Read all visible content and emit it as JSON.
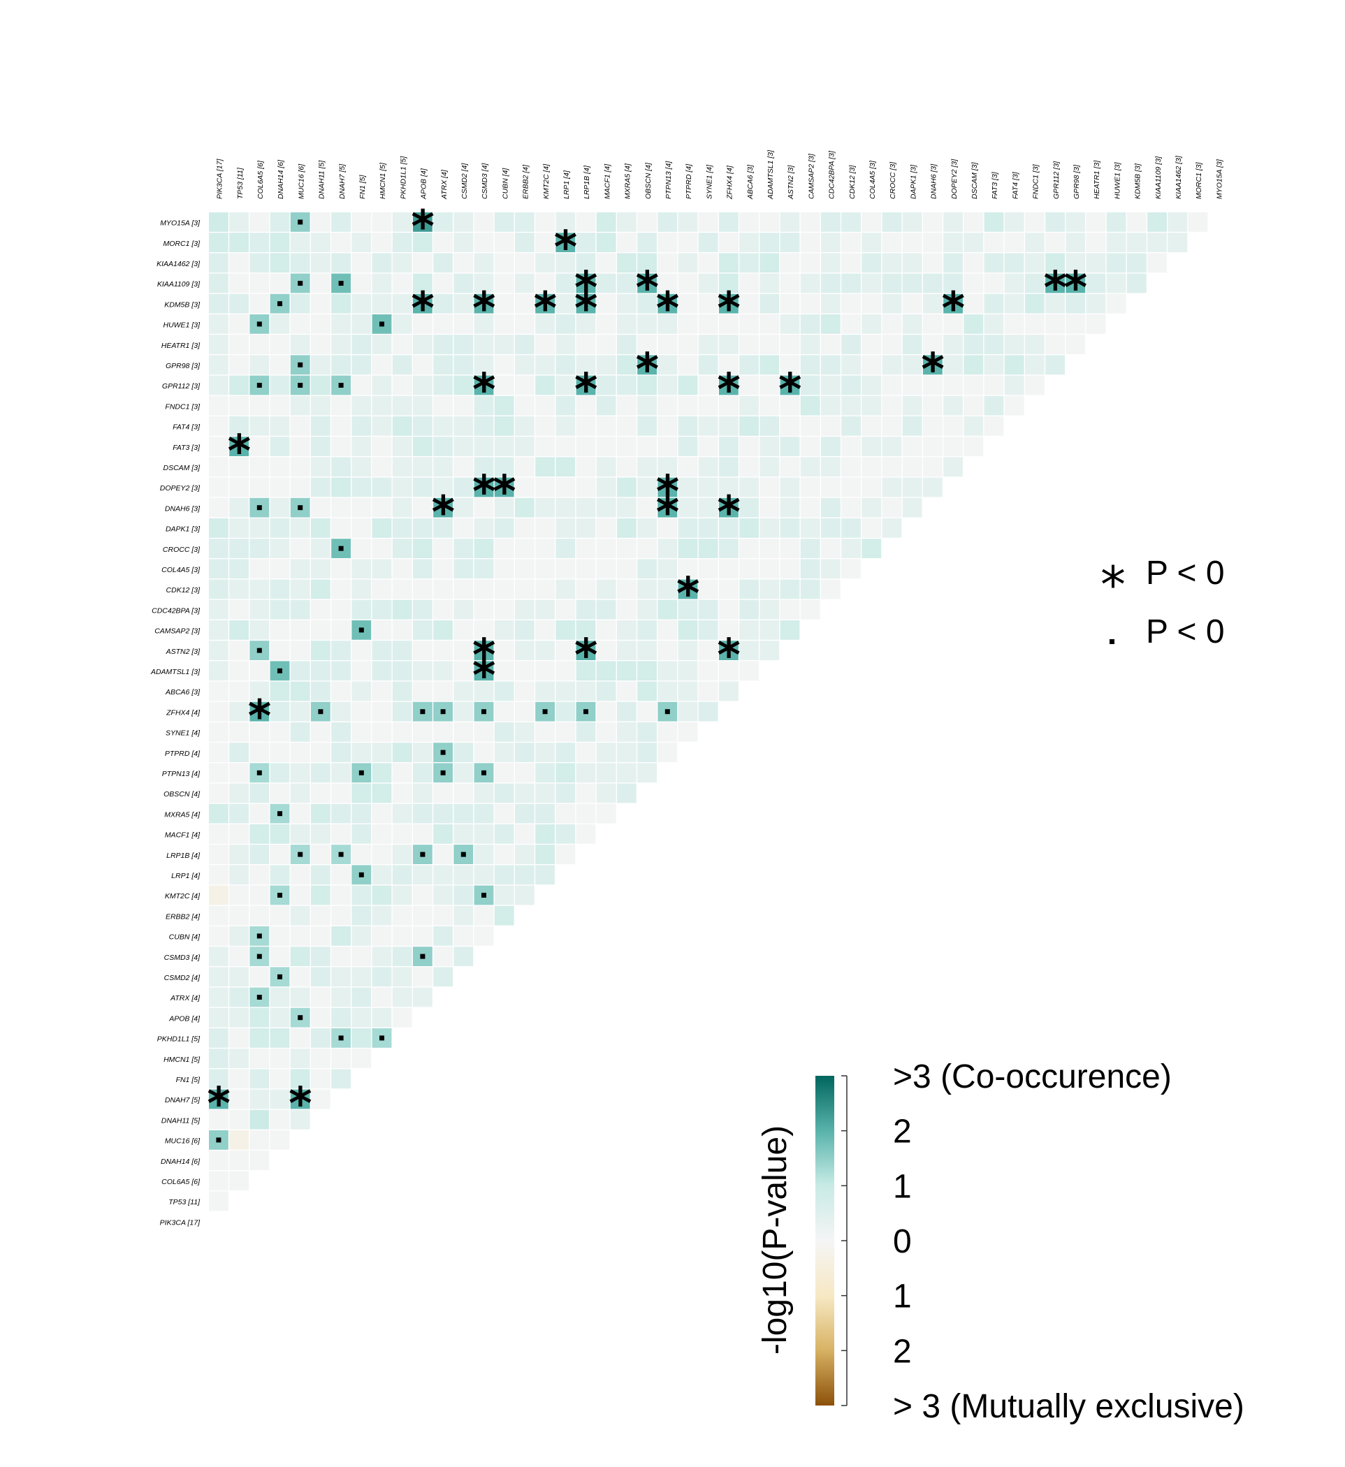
{
  "chart_data": {
    "type": "heatmap",
    "layout": "lower-left triangle (somatic interactions)",
    "genes": [
      "PIK3CA [17]",
      "TP53 [11]",
      "COL6A5 [6]",
      "DNAH14 [6]",
      "MUC16 [6]",
      "DNAH11 [5]",
      "DNAH7 [5]",
      "FN1 [5]",
      "HMCN1 [5]",
      "PKHD1L1 [5]",
      "APOB [4]",
      "ATRX [4]",
      "CSMD2 [4]",
      "CSMD3 [4]",
      "CUBN [4]",
      "ERBB2 [4]",
      "KMT2C [4]",
      "LRP1 [4]",
      "LRP1B [4]",
      "MACF1 [4]",
      "MXRA5 [4]",
      "OBSCN [4]",
      "PTPN13 [4]",
      "PTPRD [4]",
      "SYNE1 [4]",
      "ZFHX4 [4]",
      "ABCA6 [3]",
      "ADAMTSL1 [3]",
      "ASTN2 [3]",
      "CAMSAP2 [3]",
      "CDC42BPA [3]",
      "CDK12 [3]",
      "COL4A5 [3]",
      "CROCC [3]",
      "DAPK1 [3]",
      "DNAH6 [3]",
      "DOPEY2 [3]",
      "DSCAM [3]",
      "FAT3 [3]",
      "FAT4 [3]",
      "FNDC1 [3]",
      "GPR112 [3]",
      "GPR98 [3]",
      "HEATR1 [3]",
      "HUWE1 [3]",
      "KDM5B [3]",
      "KIAA1109 [3]",
      "KIAA1462 [3]",
      "MORC1 [3]",
      "MYO15A [3]"
    ],
    "value_meaning": "-log10(P-value); positive = co-occurence, negative = mutually exclusive",
    "cells": [
      {
        "row": "MYO15A [3]",
        "col": "PIK3CA [17]",
        "value": 0.8
      },
      {
        "row": "MYO15A [3]",
        "col": "MUC16 [6]",
        "value": 1.5,
        "mark": "dot"
      },
      {
        "row": "MYO15A [3]",
        "col": "APOB [4]",
        "value": 2.3,
        "mark": "star"
      },
      {
        "row": "MYO15A [3]",
        "col": "ATRX [4]",
        "value": 0.5
      },
      {
        "row": "MYO15A [3]",
        "col": "ERBB2 [4]",
        "value": 0.5
      },
      {
        "row": "MYO15A [3]",
        "col": "CDK12 [3]",
        "value": 0.5
      },
      {
        "row": "MORC1 [3]",
        "col": "LRP1 [4]",
        "value": 2.0,
        "mark": "star"
      },
      {
        "row": "KIAA1109 [3]",
        "col": "MUC16 [6]",
        "value": 1.5,
        "mark": "dot"
      },
      {
        "row": "KIAA1109 [3]",
        "col": "DNAH7 [5]",
        "value": 1.8,
        "mark": "dot"
      },
      {
        "row": "KIAA1109 [3]",
        "col": "LRP1B [4]",
        "value": 2.0,
        "mark": "star"
      },
      {
        "row": "KIAA1109 [3]",
        "col": "OBSCN [4]",
        "value": 2.0,
        "mark": "star"
      },
      {
        "row": "KIAA1109 [3]",
        "col": "GPR112 [3]",
        "value": 2.0,
        "mark": "star"
      },
      {
        "row": "KIAA1109 [3]",
        "col": "GPR98 [3]",
        "value": 2.0,
        "mark": "star"
      },
      {
        "row": "KDM5B [3]",
        "col": "DNAH14 [6]",
        "value": 1.5,
        "mark": "dot"
      },
      {
        "row": "KDM5B [3]",
        "col": "APOB [4]",
        "value": 2.0,
        "mark": "star"
      },
      {
        "row": "KDM5B [3]",
        "col": "CSMD3 [4]",
        "value": 2.0,
        "mark": "star"
      },
      {
        "row": "KDM5B [3]",
        "col": "KMT2C [4]",
        "value": 2.0,
        "mark": "star"
      },
      {
        "row": "KDM5B [3]",
        "col": "LRP1B [4]",
        "value": 2.0,
        "mark": "star"
      },
      {
        "row": "KDM5B [3]",
        "col": "PTPN13 [4]",
        "value": 2.0,
        "mark": "star"
      },
      {
        "row": "KDM5B [3]",
        "col": "ZFHX4 [4]",
        "value": 2.0,
        "mark": "star"
      },
      {
        "row": "KDM5B [3]",
        "col": "DOPEY2 [3]",
        "value": 2.0,
        "mark": "star"
      },
      {
        "row": "HUWE1 [3]",
        "col": "COL6A5 [6]",
        "value": 1.5,
        "mark": "dot"
      },
      {
        "row": "HUWE1 [3]",
        "col": "HMCN1 [5]",
        "value": 1.8,
        "mark": "dot"
      },
      {
        "row": "GPR98 [3]",
        "col": "MUC16 [6]",
        "value": 1.5,
        "mark": "dot"
      },
      {
        "row": "GPR98 [3]",
        "col": "OBSCN [4]",
        "value": 2.0,
        "mark": "star"
      },
      {
        "row": "GPR98 [3]",
        "col": "DNAH6 [3]",
        "value": 2.0,
        "mark": "star"
      },
      {
        "row": "GPR112 [3]",
        "col": "COL6A5 [6]",
        "value": 1.5,
        "mark": "dot"
      },
      {
        "row": "GPR112 [3]",
        "col": "MUC16 [6]",
        "value": 1.5,
        "mark": "dot"
      },
      {
        "row": "GPR112 [3]",
        "col": "DNAH7 [5]",
        "value": 1.5,
        "mark": "dot"
      },
      {
        "row": "GPR112 [3]",
        "col": "CSMD3 [4]",
        "value": 2.0,
        "mark": "star"
      },
      {
        "row": "GPR112 [3]",
        "col": "LRP1B [4]",
        "value": 2.0,
        "mark": "star"
      },
      {
        "row": "GPR112 [3]",
        "col": "ZFHX4 [4]",
        "value": 2.0,
        "mark": "star"
      },
      {
        "row": "GPR112 [3]",
        "col": "ASTN2 [3]",
        "value": 2.0,
        "mark": "star"
      },
      {
        "row": "FAT3 [3]",
        "col": "TP53 [11]",
        "value": 2.0,
        "mark": "star"
      },
      {
        "row": "DOPEY2 [3]",
        "col": "CSMD3 [4]",
        "value": 2.0,
        "mark": "star"
      },
      {
        "row": "DOPEY2 [3]",
        "col": "CUBN [4]",
        "value": 2.0,
        "mark": "star"
      },
      {
        "row": "DOPEY2 [3]",
        "col": "PTPN13 [4]",
        "value": 2.0,
        "mark": "star"
      },
      {
        "row": "DNAH6 [3]",
        "col": "COL6A5 [6]",
        "value": 1.5,
        "mark": "dot"
      },
      {
        "row": "DNAH6 [3]",
        "col": "MUC16 [6]",
        "value": 1.5,
        "mark": "dot"
      },
      {
        "row": "DNAH6 [3]",
        "col": "ATRX [4]",
        "value": 2.0,
        "mark": "star"
      },
      {
        "row": "DNAH6 [3]",
        "col": "PTPN13 [4]",
        "value": 2.0,
        "mark": "star"
      },
      {
        "row": "DNAH6 [3]",
        "col": "ZFHX4 [4]",
        "value": 2.0,
        "mark": "star"
      },
      {
        "row": "CROCC [3]",
        "col": "DNAH7 [5]",
        "value": 1.8,
        "mark": "dot"
      },
      {
        "row": "CDK12 [3]",
        "col": "PTPRD [4]",
        "value": 2.0,
        "mark": "star"
      },
      {
        "row": "CAMSAP2 [3]",
        "col": "FN1 [5]",
        "value": 1.8,
        "mark": "dot"
      },
      {
        "row": "ASTN2 [3]",
        "col": "COL6A5 [6]",
        "value": 1.5,
        "mark": "dot"
      },
      {
        "row": "ASTN2 [3]",
        "col": "CSMD3 [4]",
        "value": 2.0,
        "mark": "star"
      },
      {
        "row": "ASTN2 [3]",
        "col": "LRP1B [4]",
        "value": 2.0,
        "mark": "star"
      },
      {
        "row": "ASTN2 [3]",
        "col": "ZFHX4 [4]",
        "value": 2.0,
        "mark": "star"
      },
      {
        "row": "ADAMTSL1 [3]",
        "col": "DNAH14 [6]",
        "value": 1.8,
        "mark": "dot"
      },
      {
        "row": "ADAMTSL1 [3]",
        "col": "CSMD3 [4]",
        "value": 2.0,
        "mark": "star"
      },
      {
        "row": "ZFHX4 [4]",
        "col": "COL6A5 [6]",
        "value": 2.0,
        "mark": "star"
      },
      {
        "row": "ZFHX4 [4]",
        "col": "DNAH11 [5]",
        "value": 1.5,
        "mark": "dot"
      },
      {
        "row": "ZFHX4 [4]",
        "col": "APOB [4]",
        "value": 1.5,
        "mark": "dot"
      },
      {
        "row": "ZFHX4 [4]",
        "col": "ATRX [4]",
        "value": 1.5,
        "mark": "dot"
      },
      {
        "row": "ZFHX4 [4]",
        "col": "CSMD3 [4]",
        "value": 1.5,
        "mark": "dot"
      },
      {
        "row": "ZFHX4 [4]",
        "col": "KMT2C [4]",
        "value": 1.5,
        "mark": "dot"
      },
      {
        "row": "ZFHX4 [4]",
        "col": "LRP1B [4]",
        "value": 1.5,
        "mark": "dot"
      },
      {
        "row": "ZFHX4 [4]",
        "col": "PTPN13 [4]",
        "value": 1.5,
        "mark": "dot"
      },
      {
        "row": "PTPRD [4]",
        "col": "ATRX [4]",
        "value": 1.5,
        "mark": "dot"
      },
      {
        "row": "PTPN13 [4]",
        "col": "COL6A5 [6]",
        "value": 1.3,
        "mark": "dot"
      },
      {
        "row": "PTPN13 [4]",
        "col": "FN1 [5]",
        "value": 1.5,
        "mark": "dot"
      },
      {
        "row": "PTPN13 [4]",
        "col": "ATRX [4]",
        "value": 1.5,
        "mark": "dot"
      },
      {
        "row": "PTPN13 [4]",
        "col": "CSMD3 [4]",
        "value": 1.5,
        "mark": "dot"
      },
      {
        "row": "MXRA5 [4]",
        "col": "DNAH14 [6]",
        "value": 1.3,
        "mark": "dot"
      },
      {
        "row": "LRP1B [4]",
        "col": "MUC16 [6]",
        "value": 1.3,
        "mark": "dot"
      },
      {
        "row": "LRP1B [4]",
        "col": "DNAH7 [5]",
        "value": 1.3,
        "mark": "dot"
      },
      {
        "row": "LRP1B [4]",
        "col": "APOB [4]",
        "value": 1.5,
        "mark": "dot"
      },
      {
        "row": "LRP1B [4]",
        "col": "CSMD2 [4]",
        "value": 1.5,
        "mark": "dot"
      },
      {
        "row": "LRP1 [4]",
        "col": "FN1 [5]",
        "value": 1.5,
        "mark": "dot"
      },
      {
        "row": "KMT2C [4]",
        "col": "PIK3CA [17]",
        "value": -0.3
      },
      {
        "row": "KMT2C [4]",
        "col": "DNAH14 [6]",
        "value": 1.3,
        "mark": "dot"
      },
      {
        "row": "KMT2C [4]",
        "col": "CSMD3 [4]",
        "value": 1.5,
        "mark": "dot"
      },
      {
        "row": "CUBN [4]",
        "col": "COL6A5 [6]",
        "value": 1.3,
        "mark": "dot"
      },
      {
        "row": "CSMD3 [4]",
        "col": "COL6A5 [6]",
        "value": 1.3,
        "mark": "dot"
      },
      {
        "row": "CSMD3 [4]",
        "col": "APOB [4]",
        "value": 1.5,
        "mark": "dot"
      },
      {
        "row": "CSMD2 [4]",
        "col": "DNAH14 [6]",
        "value": 1.3,
        "mark": "dot"
      },
      {
        "row": "ATRX [4]",
        "col": "COL6A5 [6]",
        "value": 1.3,
        "mark": "dot"
      },
      {
        "row": "APOB [4]",
        "col": "MUC16 [6]",
        "value": 1.3,
        "mark": "dot"
      },
      {
        "row": "PKHD1L1 [5]",
        "col": "DNAH7 [5]",
        "value": 1.3,
        "mark": "dot"
      },
      {
        "row": "PKHD1L1 [5]",
        "col": "HMCN1 [5]",
        "value": 1.3,
        "mark": "dot"
      },
      {
        "row": "DNAH7 [5]",
        "col": "PIK3CA [17]",
        "value": 2.0,
        "mark": "star"
      },
      {
        "row": "DNAH7 [5]",
        "col": "MUC16 [6]",
        "value": 2.0,
        "mark": "star"
      },
      {
        "row": "DNAH11 [5]",
        "col": "COL6A5 [6]",
        "value": 0.9
      },
      {
        "row": "MUC16 [6]",
        "col": "PIK3CA [17]",
        "value": 1.5,
        "mark": "dot"
      },
      {
        "row": "MUC16 [6]",
        "col": "TP53 [11]",
        "value": -0.3
      }
    ],
    "legend": {
      "significance": [
        {
          "symbol": "*",
          "label": "P < 0"
        },
        {
          "symbol": "·",
          "label": "P < 0"
        }
      ],
      "colorbar": {
        "title": "-log10(P-value)",
        "range": [
          -3,
          3
        ],
        "tick_labels": [
          ">3 (Co-occurence)",
          "2",
          "1",
          "0",
          "1",
          "2",
          "> 3 (Mutually exclusive)"
        ],
        "colors": {
          "high": "#01665e",
          "mid_high": "#5ab4ac",
          "light": "#c7eae5",
          "zero": "#f5f5f5",
          "low_light": "#f6e8c3",
          "mid_low": "#d8b365",
          "low": "#8c510a"
        }
      }
    }
  }
}
